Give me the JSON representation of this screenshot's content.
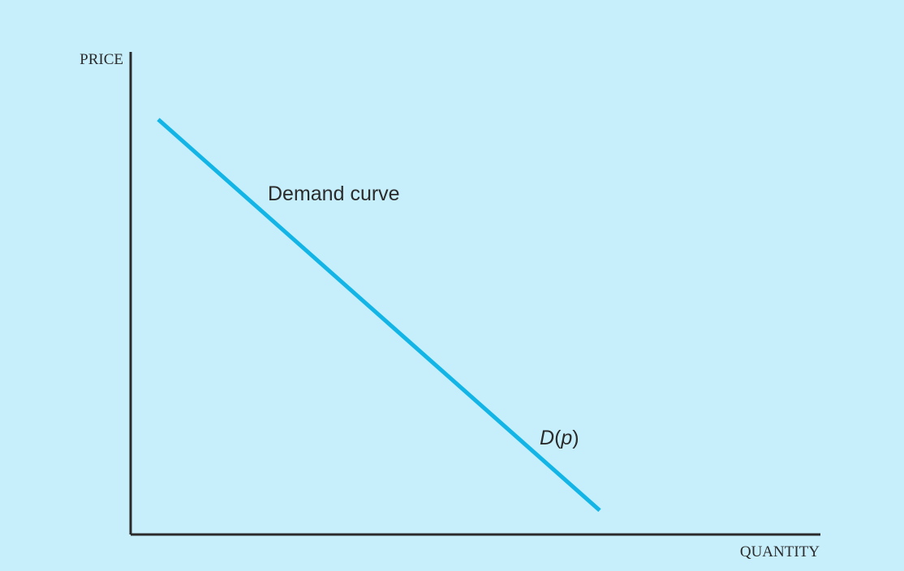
{
  "chart_data": {
    "type": "line",
    "title": "",
    "xlabel": "QUANTITY",
    "ylabel": "PRICE",
    "xlim": [
      0,
      100
    ],
    "ylim": [
      0,
      100
    ],
    "grid": false,
    "series": [
      {
        "name": "Demand curve",
        "x": [
          4,
          68
        ],
        "y": [
          86,
          5
        ]
      }
    ],
    "annotations": {
      "curve_name": "Demand curve",
      "function_label": {
        "func": "D",
        "open": "(",
        "arg": "p",
        "close": ")"
      }
    },
    "colors": {
      "background": "#c6eefb",
      "axis": "#2b2b2b",
      "curve": "#12b5e6",
      "text": "#2b2b2b"
    }
  }
}
